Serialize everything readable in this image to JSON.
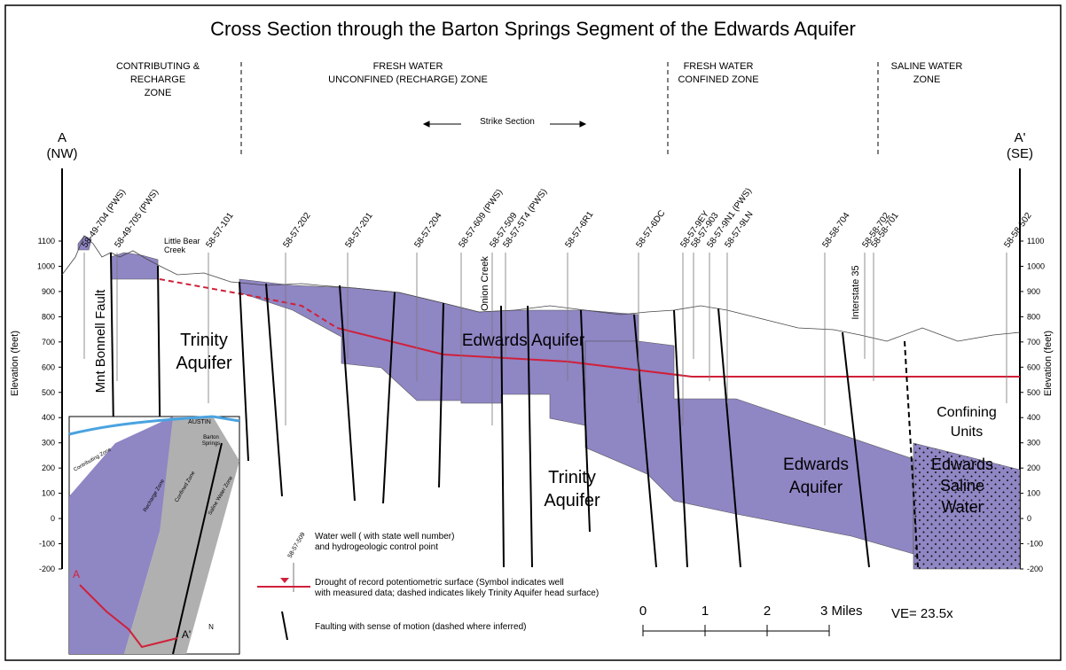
{
  "title": "Cross Section through the Barton Springs Segment of the Edwards Aquifer",
  "zones": [
    [
      "CONTRIBUTING &",
      "RECHARGE",
      "ZONE"
    ],
    [
      "FRESH WATER",
      "UNCONFINED (RECHARGE) ZONE"
    ],
    [
      "FRESH WATER",
      "CONFINED ZONE"
    ],
    [
      "SALINE WATER",
      "ZONE"
    ]
  ],
  "strike_section": "Strike Section",
  "ends": {
    "left": [
      "A",
      "(NW)"
    ],
    "right": [
      "A'",
      "(SE)"
    ]
  },
  "axis_label": "Elevation (feet)",
  "elevation_ticks": [
    1100,
    1000,
    900,
    800,
    700,
    600,
    500,
    400,
    300,
    200,
    100,
    0,
    -100,
    -200
  ],
  "wells": [
    "58-49-704 (PWS)",
    "58-49-705 (PWS)",
    "58-57-101",
    "58-57-202",
    "58-57-201",
    "58-57-204",
    "58-57-609 (PWS)",
    "58-57-509",
    "58-57-5T4 (PWS)",
    "58-57-6R1",
    "58-57-6DC",
    "58-57-9EY",
    "58-57-903",
    "58-57-9N1 (PWS)",
    "58-57-9LN",
    "58-58-704",
    "58-58-702",
    "58-58-701",
    "58-58-502"
  ],
  "features": {
    "little_bear": [
      "Little Bear",
      "Creek"
    ],
    "onion": "Onion Creek",
    "interstate": "Interstate 35",
    "fault": "Mnt Bonnell Fault"
  },
  "units": {
    "trinity_upper": [
      "Trinity",
      "Aquifer"
    ],
    "trinity_lower": [
      "Trinity",
      "Aquifer"
    ],
    "edwards_upper": "Edwards Aquifer",
    "edwards_lower": [
      "Edwards",
      "Aquifer"
    ],
    "confining": [
      "Confining",
      "Units"
    ],
    "saline": [
      "Edwards",
      "Saline",
      "Water"
    ]
  },
  "legend": {
    "well_sample": "58-57-509",
    "well": [
      "Water well ( with state well number)",
      "and hydrogeologic control point"
    ],
    "surface": [
      "Drought of record potentiometric surface (Symbol indicates well",
      "with measured data; dashed indicates likely Trinity Aquifer head surface)"
    ],
    "fault": "Faulting with sense of motion (dashed where inferred)"
  },
  "scale": [
    "0",
    "1",
    "2",
    "3 Miles"
  ],
  "ve": "VE= 23.5x",
  "map": {
    "city": "AUSTIN",
    "springs": [
      "Barton",
      "Springs"
    ],
    "contributing": "Contributing Zone",
    "recharge": "Recharge Zone",
    "confined": "Confined Zone",
    "saline": "Saline Water Zone",
    "a": "A",
    "a_prime": "A'",
    "north": "N"
  }
}
